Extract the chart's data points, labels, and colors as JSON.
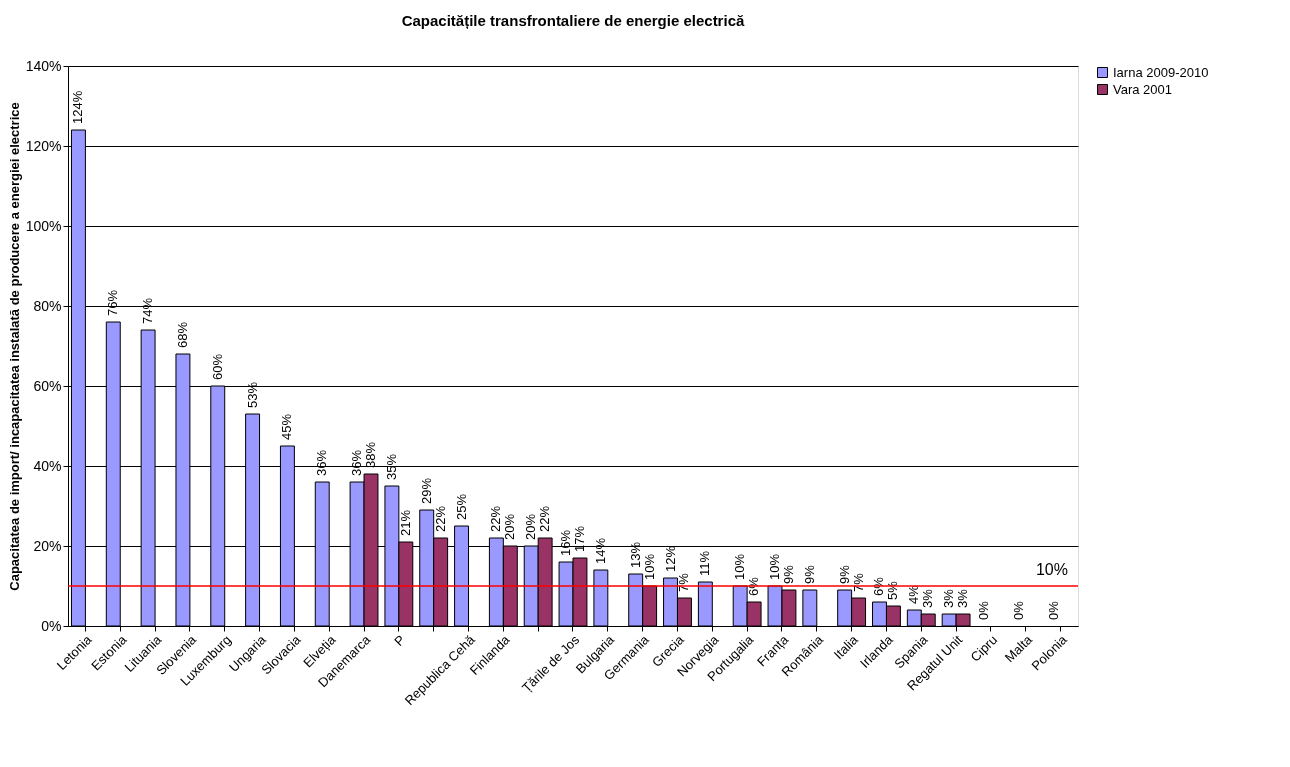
{
  "chart_data": {
    "type": "bar",
    "title": "Capacitățile transfrontaliere de energie electrică",
    "ylabel": "Capacitatea de import/ incapacitatea instalată de producere a energiei electrice",
    "categories": [
      "Letonia",
      "Estonia",
      "Lituania",
      "Slovenia",
      "Luxemburg",
      "Ungaria",
      "Slovacia",
      "Elveția",
      "Danemarca",
      "P",
      null,
      "Republica Cehă",
      "Finlanda",
      null,
      "Țările de Jos",
      "Bulgaria",
      "Germania",
      "Grecia",
      "Norvegia",
      "Portugalia",
      "Franța",
      "România",
      "Italia",
      "Irlanda",
      "Spania",
      "Regatul Unit",
      "Cipru",
      "Malta",
      "Polonia"
    ],
    "series": [
      {
        "name": "Iarna 2009-2010",
        "color": "#9999ff",
        "values": [
          124,
          76,
          74,
          68,
          60,
          53,
          45,
          36,
          36,
          35,
          29,
          25,
          22,
          20,
          16,
          14,
          13,
          12,
          11,
          10,
          10,
          9,
          9,
          6,
          4,
          3,
          0,
          0,
          0
        ],
        "value_labels": [
          "124%",
          "76%",
          "74%",
          "68%",
          "60%",
          "53%",
          "45%",
          "36%",
          "36%",
          "35%",
          "29%",
          "25%",
          "22%",
          "20%",
          "16%",
          "14%",
          "13%",
          "12%",
          "11%",
          "10%",
          "10%",
          "9%",
          "9%",
          "6%",
          "4%",
          "3%",
          "0%",
          "0%",
          "0%"
        ]
      },
      {
        "name": "Vara 2001",
        "color": "#993366",
        "values": [
          null,
          null,
          null,
          null,
          null,
          null,
          null,
          null,
          38,
          21,
          22,
          null,
          20,
          22,
          17,
          null,
          10,
          7,
          null,
          6,
          9,
          null,
          7,
          5,
          3,
          3,
          null,
          null,
          null
        ],
        "value_labels": [
          null,
          null,
          null,
          null,
          null,
          null,
          null,
          null,
          "38%",
          "21%",
          "22%",
          null,
          "20%",
          "22%",
          "17%",
          null,
          "10%",
          "7%",
          null,
          "6%",
          "9%",
          null,
          "7%",
          "5%",
          "3%",
          "3%",
          null,
          null,
          null
        ]
      }
    ],
    "ylim": [
      0,
      140
    ],
    "yticks": [
      {
        "value": 0,
        "label": "0%"
      },
      {
        "value": 20,
        "label": "20%"
      },
      {
        "value": 40,
        "label": "40%"
      },
      {
        "value": 60,
        "label": "60%"
      },
      {
        "value": 80,
        "label": "80%"
      },
      {
        "value": 100,
        "label": "100%"
      },
      {
        "value": 120,
        "label": "120%"
      },
      {
        "value": 140,
        "label": "140%"
      }
    ],
    "grid": "y",
    "legend": "right",
    "ref_lines": [
      {
        "axis": "y",
        "value": 10,
        "label": "10%",
        "color": "#ff0000"
      }
    ]
  }
}
